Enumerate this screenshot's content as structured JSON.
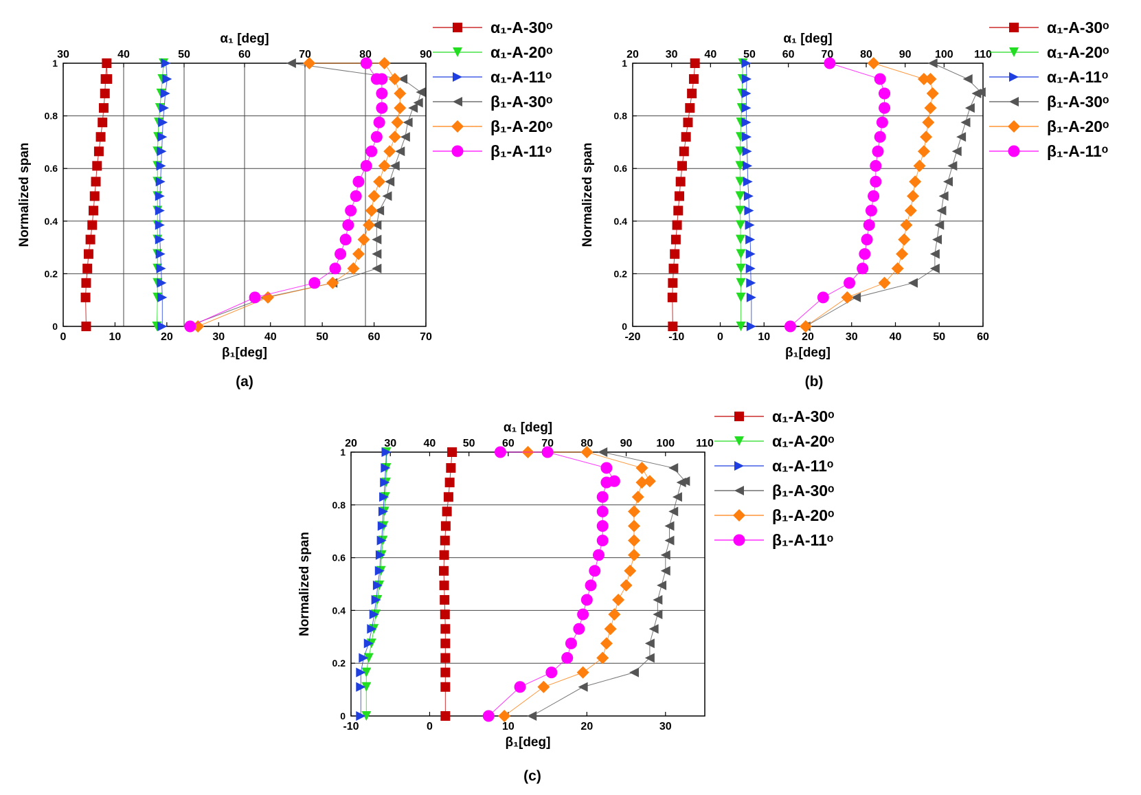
{
  "colors": {
    "a30": "#c00000",
    "a20": "#22dd22",
    "a11": "#1f3fe0",
    "b30": "#555555",
    "b20": "#ff7f0e",
    "b11": "#ff00ff",
    "grid": "#000000"
  },
  "chart_data": [
    {
      "type": "scatter",
      "panel_label": "(a)",
      "top_xlabel": "α₁ [deg]",
      "bottom_xlabel": "β₁[deg]",
      "ylabel": "Normalized span",
      "ylim": [
        0,
        1
      ],
      "top_xlim": [
        30,
        90
      ],
      "bottom_xlim": [
        0,
        70
      ],
      "top_ticks": [
        "30",
        "40",
        "50",
        "60",
        "70",
        "80",
        "90"
      ],
      "bottom_ticks": [
        "0",
        "10",
        "20",
        "30",
        "40",
        "50",
        "60",
        "70"
      ],
      "y_ticks": [
        "0",
        "0.2",
        "0.4",
        "0.6",
        "0.8",
        "1"
      ],
      "grid": "both",
      "legend_position": "right",
      "series": [
        {
          "name": "α₁-A-30ᵒ",
          "key": "a30",
          "marker": "square",
          "axis": "top",
          "x": [
            33.8,
            33.7,
            33.8,
            34.0,
            34.2,
            34.5,
            34.8,
            35.0,
            35.2,
            35.4,
            35.6,
            35.9,
            36.2,
            36.5,
            36.7,
            36.9,
            37.0,
            37.2,
            37.3
          ],
          "y": [
            0,
            0.11,
            0.165,
            0.22,
            0.275,
            0.33,
            0.385,
            0.44,
            0.495,
            0.55,
            0.61,
            0.665,
            0.72,
            0.775,
            0.83,
            0.885,
            0.94,
            1.0,
            0.94
          ]
        },
        {
          "name": "α₁-A-20ᵒ",
          "key": "a20",
          "marker": "triangle-down",
          "axis": "top",
          "x": [
            45.5,
            45.6,
            45.6,
            45.6,
            45.6,
            45.6,
            45.6,
            45.6,
            45.6,
            45.6,
            45.6,
            45.6,
            45.7,
            45.8,
            46.0,
            46.2,
            46.4,
            46.6
          ],
          "y": [
            0,
            0.11,
            0.165,
            0.22,
            0.275,
            0.33,
            0.385,
            0.44,
            0.495,
            0.55,
            0.61,
            0.665,
            0.72,
            0.775,
            0.83,
            0.885,
            0.94,
            1.0
          ]
        },
        {
          "name": "α₁-A-11ᵒ",
          "key": "a11",
          "marker": "triangle-right",
          "axis": "top",
          "x": [
            46.4,
            46.4,
            46.3,
            46.2,
            46.1,
            46.0,
            46.0,
            46.0,
            46.0,
            46.1,
            46.2,
            46.3,
            46.4,
            46.5,
            46.7,
            46.9,
            47.2,
            47.0
          ],
          "y": [
            0,
            0.11,
            0.165,
            0.22,
            0.275,
            0.33,
            0.385,
            0.44,
            0.495,
            0.55,
            0.61,
            0.665,
            0.72,
            0.775,
            0.83,
            0.885,
            0.94,
            1.0
          ]
        },
        {
          "name": "β₁-A-30ᵒ",
          "key": "b30",
          "marker": "triangle-left",
          "axis": "bottom",
          "x": [
            24,
            39,
            52,
            60.5,
            60.5,
            60.5,
            60.5,
            61,
            62.5,
            63,
            64,
            65,
            66,
            66.5,
            67.5,
            68.5,
            69,
            65.5,
            44
          ],
          "y": [
            0,
            0.11,
            0.165,
            0.22,
            0.275,
            0.33,
            0.385,
            0.44,
            0.495,
            0.55,
            0.61,
            0.665,
            0.72,
            0.775,
            0.83,
            0.85,
            0.89,
            0.94,
            1.0
          ]
        },
        {
          "name": "β₁-A-20ᵒ",
          "key": "b20",
          "marker": "diamond",
          "axis": "bottom",
          "x": [
            26,
            39.5,
            52,
            56,
            57,
            58,
            59,
            59.5,
            60,
            61,
            62,
            63,
            64,
            64.5,
            65,
            65,
            64,
            62,
            47.5
          ],
          "y": [
            0,
            0.11,
            0.165,
            0.22,
            0.275,
            0.33,
            0.385,
            0.44,
            0.495,
            0.55,
            0.61,
            0.665,
            0.72,
            0.775,
            0.83,
            0.885,
            0.94,
            1.0,
            1.0
          ]
        },
        {
          "name": "β₁-A-11ᵒ",
          "key": "b11",
          "marker": "circle",
          "axis": "bottom",
          "x": [
            24.5,
            37,
            48.5,
            52.5,
            53.5,
            54.5,
            55,
            55.5,
            56.5,
            57,
            58.5,
            59.5,
            60.5,
            61,
            61.5,
            61.5,
            61.5,
            60.5,
            58.5
          ],
          "y": [
            0,
            0.11,
            0.165,
            0.22,
            0.275,
            0.33,
            0.385,
            0.44,
            0.495,
            0.55,
            0.61,
            0.665,
            0.72,
            0.775,
            0.83,
            0.885,
            0.94,
            0.94,
            1.0
          ]
        }
      ]
    },
    {
      "type": "scatter",
      "panel_label": "(b)",
      "top_xlabel": "α₁ [deg]",
      "bottom_xlabel": "β₁[deg]",
      "ylabel": "Normalized span",
      "ylim": [
        0,
        1
      ],
      "top_xlim": [
        20,
        110
      ],
      "bottom_xlim": [
        -20,
        60
      ],
      "top_ticks": [
        "20",
        "30",
        "40",
        "50",
        "60",
        "70",
        "80",
        "90",
        "100",
        "110"
      ],
      "bottom_ticks": [
        "-20",
        "-10",
        "0",
        "10",
        "20",
        "30",
        "40",
        "50",
        "60"
      ],
      "y_ticks": [
        "0",
        "0.2",
        "0.4",
        "0.6",
        "0.8",
        "1"
      ],
      "grid": "horizontal",
      "legend_position": "right",
      "series": [
        {
          "name": "α₁-A-30ᵒ",
          "key": "a30",
          "marker": "square",
          "axis": "top",
          "x": [
            30.3,
            30.2,
            30.3,
            30.5,
            30.8,
            31.1,
            31.4,
            31.7,
            32.0,
            32.3,
            32.7,
            33.2,
            33.7,
            34.2,
            34.7,
            35.2,
            35.7,
            36.0
          ],
          "y": [
            0,
            0.11,
            0.165,
            0.22,
            0.275,
            0.33,
            0.385,
            0.44,
            0.495,
            0.55,
            0.61,
            0.665,
            0.72,
            0.775,
            0.83,
            0.885,
            0.94,
            1.0
          ]
        },
        {
          "name": "α₁-A-20ᵒ",
          "key": "a20",
          "marker": "triangle-down",
          "axis": "top",
          "x": [
            47.8,
            47.8,
            47.8,
            47.8,
            47.8,
            47.7,
            47.7,
            47.6,
            47.6,
            47.6,
            47.6,
            47.6,
            47.7,
            47.8,
            48.0,
            48.1,
            48.2,
            48.3
          ],
          "y": [
            0,
            0.11,
            0.165,
            0.22,
            0.275,
            0.33,
            0.385,
            0.44,
            0.495,
            0.55,
            0.61,
            0.665,
            0.72,
            0.775,
            0.83,
            0.885,
            0.94,
            1.0
          ]
        },
        {
          "name": "α₁-A-11ᵒ",
          "key": "a11",
          "marker": "triangle-right",
          "axis": "top",
          "x": [
            50.5,
            50.5,
            50.4,
            50.3,
            50.3,
            50.2,
            50.1,
            49.9,
            49.8,
            49.6,
            49.5,
            49.4,
            49.3,
            49.2,
            49.2,
            49.2,
            49.3,
            49.2
          ],
          "y": [
            0,
            0.11,
            0.165,
            0.22,
            0.275,
            0.33,
            0.385,
            0.44,
            0.495,
            0.55,
            0.61,
            0.665,
            0.72,
            0.775,
            0.83,
            0.885,
            0.94,
            1.0
          ]
        },
        {
          "name": "β₁-A-30ᵒ",
          "key": "b30",
          "marker": "triangle-left",
          "axis": "bottom",
          "x": [
            19.5,
            31,
            44,
            49,
            49,
            49.5,
            50,
            50.5,
            51,
            52,
            53,
            54,
            55,
            56,
            57,
            58.5,
            59.5,
            56.5,
            48.5
          ],
          "y": [
            0,
            0.11,
            0.165,
            0.22,
            0.275,
            0.33,
            0.385,
            0.44,
            0.495,
            0.55,
            0.61,
            0.665,
            0.72,
            0.775,
            0.83,
            0.885,
            0.89,
            0.94,
            1.0
          ]
        },
        {
          "name": "β₁-A-20ᵒ",
          "key": "b20",
          "marker": "diamond",
          "axis": "bottom",
          "x": [
            19.5,
            29,
            37.5,
            40.5,
            41.5,
            42,
            42.5,
            43.5,
            44,
            44.5,
            45.5,
            46.5,
            47,
            47.5,
            48,
            48.5,
            48,
            46.5,
            35
          ],
          "y": [
            0,
            0.11,
            0.165,
            0.22,
            0.275,
            0.33,
            0.385,
            0.44,
            0.495,
            0.55,
            0.61,
            0.665,
            0.72,
            0.775,
            0.83,
            0.885,
            0.94,
            0.94,
            1.0
          ]
        },
        {
          "name": "β₁-A-11ᵒ",
          "key": "b11",
          "marker": "circle",
          "axis": "bottom",
          "x": [
            16,
            23.5,
            29.5,
            32.5,
            33,
            33.5,
            34,
            34.5,
            35,
            35.5,
            35.5,
            36,
            36.5,
            37,
            37.5,
            37.5,
            37.5,
            36.5,
            25
          ],
          "y": [
            0,
            0.11,
            0.165,
            0.22,
            0.275,
            0.33,
            0.385,
            0.44,
            0.495,
            0.55,
            0.61,
            0.665,
            0.72,
            0.775,
            0.83,
            0.885,
            0.885,
            0.94,
            1.0
          ]
        }
      ]
    },
    {
      "type": "scatter",
      "panel_label": "(c)",
      "top_xlabel": "α₁ [deg]",
      "bottom_xlabel": "β₁[deg]",
      "ylabel": "Normalized span",
      "ylim": [
        0,
        1
      ],
      "top_xlim": [
        20,
        110
      ],
      "bottom_xlim": [
        -10,
        35
      ],
      "top_ticks": [
        "20",
        "30",
        "40",
        "50",
        "60",
        "70",
        "80",
        "90",
        "100",
        "110"
      ],
      "bottom_ticks": [
        "-10",
        "0",
        "10",
        "20",
        "30"
      ],
      "y_ticks": [
        "0",
        "0.2",
        "0.4",
        "0.6",
        "0.8",
        "1"
      ],
      "grid": "horizontal",
      "legend_position": "right",
      "series": [
        {
          "name": "α₁-A-30ᵒ",
          "key": "a30",
          "marker": "square",
          "axis": "top",
          "x": [
            44.0,
            44.0,
            44.0,
            44.0,
            44.0,
            44.0,
            43.9,
            43.8,
            43.7,
            43.6,
            43.7,
            43.9,
            44.1,
            44.4,
            44.8,
            45.1,
            45.4,
            45.7
          ],
          "y": [
            0,
            0.11,
            0.165,
            0.22,
            0.275,
            0.33,
            0.385,
            0.44,
            0.495,
            0.55,
            0.61,
            0.665,
            0.72,
            0.775,
            0.83,
            0.885,
            0.94,
            1.0
          ]
        },
        {
          "name": "α₁-A-20ᵒ",
          "key": "a20",
          "marker": "triangle-down",
          "axis": "top",
          "x": [
            23.9,
            23.9,
            23.9,
            24.5,
            25.2,
            25.8,
            26.3,
            26.7,
            27.2,
            27.6,
            27.8,
            28.1,
            28.3,
            28.5,
            28.7,
            28.9,
            29.0,
            29.0
          ],
          "y": [
            0,
            0.11,
            0.165,
            0.22,
            0.275,
            0.33,
            0.385,
            0.44,
            0.495,
            0.55,
            0.61,
            0.665,
            0.72,
            0.775,
            0.83,
            0.885,
            0.94,
            1.0
          ]
        },
        {
          "name": "α₁-A-11ᵒ",
          "key": "a11",
          "marker": "triangle-right",
          "axis": "top",
          "x": [
            22.5,
            22.5,
            22.5,
            23.2,
            24.5,
            25.3,
            25.9,
            26.4,
            26.8,
            27.3,
            27.5,
            27.8,
            28.0,
            28.2,
            28.4,
            28.6,
            28.8,
            29.0
          ],
          "y": [
            0,
            0.11,
            0.165,
            0.22,
            0.275,
            0.33,
            0.385,
            0.44,
            0.495,
            0.55,
            0.61,
            0.665,
            0.72,
            0.775,
            0.83,
            0.885,
            0.94,
            1.0
          ]
        },
        {
          "name": "β₁-A-30ᵒ",
          "key": "b30",
          "marker": "triangle-left",
          "axis": "bottom",
          "x": [
            13,
            19.5,
            26,
            28,
            28,
            28.5,
            29,
            29,
            29.5,
            30,
            30,
            30.5,
            30.5,
            31,
            31.5,
            32,
            32.5,
            31,
            22
          ],
          "y": [
            0,
            0.11,
            0.165,
            0.22,
            0.275,
            0.33,
            0.385,
            0.44,
            0.495,
            0.55,
            0.61,
            0.665,
            0.72,
            0.775,
            0.83,
            0.885,
            0.89,
            0.94,
            1.0
          ]
        },
        {
          "name": "β₁-A-20ᵒ",
          "key": "b20",
          "marker": "diamond",
          "axis": "bottom",
          "x": [
            9.5,
            14.5,
            19.5,
            22,
            22.5,
            23,
            23.5,
            24,
            25,
            25.5,
            26,
            26,
            26,
            26,
            26.5,
            27,
            28,
            27,
            20,
            12.5
          ],
          "y": [
            0,
            0.11,
            0.165,
            0.22,
            0.275,
            0.33,
            0.385,
            0.44,
            0.495,
            0.55,
            0.61,
            0.665,
            0.72,
            0.775,
            0.83,
            0.885,
            0.89,
            0.94,
            1.0,
            1.0
          ]
        },
        {
          "name": "β₁-A-11ᵒ",
          "key": "b11",
          "marker": "circle",
          "axis": "bottom",
          "x": [
            7.5,
            11.5,
            15.5,
            17.5,
            18,
            19,
            19.5,
            20,
            20.5,
            21,
            21.5,
            22,
            22,
            22,
            22,
            22.5,
            23.5,
            22.5,
            15,
            9
          ],
          "y": [
            0,
            0.11,
            0.165,
            0.22,
            0.275,
            0.33,
            0.385,
            0.44,
            0.495,
            0.55,
            0.61,
            0.665,
            0.72,
            0.775,
            0.83,
            0.885,
            0.89,
            0.94,
            1.0,
            1.0
          ]
        }
      ]
    }
  ]
}
